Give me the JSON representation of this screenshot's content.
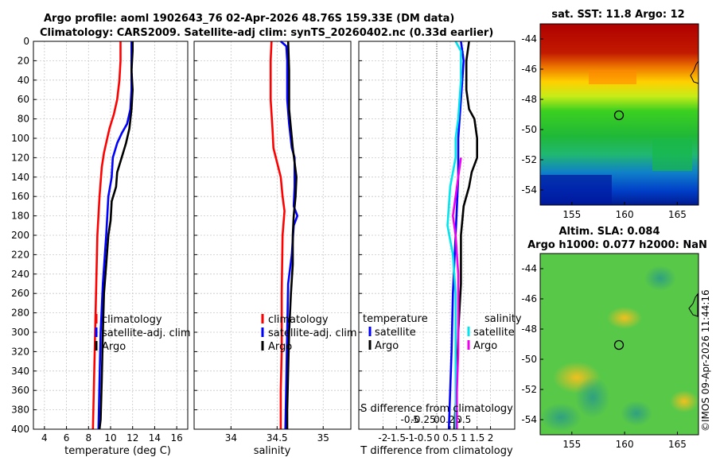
{
  "title": {
    "line1": "Argo profile: aoml 1902643_76 02-Apr-2026 48.76S 159.33E (DM data)",
    "line2": "Climatology: CARS2009. Satellite-adj clim: synTS_20260402.nc (0.33d earlier)"
  },
  "colors": {
    "climatology": "#ff0000",
    "satellite": "#0000ff",
    "argo": "#000000",
    "sat_salinity": "#00e5ee",
    "argo_salinity": "#ee00ee"
  },
  "chart_data": [
    {
      "id": "temperature",
      "type": "line",
      "xlabel": "temperature (deg C)",
      "ylabel": "",
      "xlim": [
        3,
        17
      ],
      "ylim": [
        400,
        0
      ],
      "xticks": [
        "4",
        "6",
        "8",
        "10",
        "12",
        "14",
        "16"
      ],
      "yticks": [
        "0",
        "20",
        "40",
        "60",
        "80",
        "100",
        "120",
        "140",
        "160",
        "180",
        "200",
        "220",
        "240",
        "260",
        "280",
        "300",
        "320",
        "340",
        "360",
        "380",
        "400"
      ],
      "grid": true,
      "legend": {
        "placement": "bottom-right",
        "entries": [
          "climatology",
          "satellite-adj. clim",
          "Argo"
        ]
      },
      "series": [
        {
          "name": "climatology",
          "color": "#ff0000",
          "points": [
            [
              10.9,
              0
            ],
            [
              10.9,
              20
            ],
            [
              10.8,
              40
            ],
            [
              10.6,
              60
            ],
            [
              10.3,
              75
            ],
            [
              9.9,
              90
            ],
            [
              9.7,
              100
            ],
            [
              9.4,
              115
            ],
            [
              9.2,
              130
            ],
            [
              9.0,
              160
            ],
            [
              8.8,
              200
            ],
            [
              8.7,
              250
            ],
            [
              8.6,
              300
            ],
            [
              8.5,
              350
            ],
            [
              8.4,
              400
            ]
          ]
        },
        {
          "name": "satellite-adj. clim",
          "color": "#0000ff",
          "points": [
            [
              11.9,
              0
            ],
            [
              11.9,
              20
            ],
            [
              11.9,
              50
            ],
            [
              11.8,
              70
            ],
            [
              11.5,
              85
            ],
            [
              11.0,
              95
            ],
            [
              10.6,
              105
            ],
            [
              10.2,
              120
            ],
            [
              10.1,
              140
            ],
            [
              9.8,
              160
            ],
            [
              9.6,
              200
            ],
            [
              9.3,
              250
            ],
            [
              9.1,
              300
            ],
            [
              9.0,
              350
            ],
            [
              8.9,
              400
            ]
          ]
        },
        {
          "name": "Argo",
          "color": "#000000",
          "points": [
            [
              12.0,
              0
            ],
            [
              12.0,
              10
            ],
            [
              11.9,
              30
            ],
            [
              12.0,
              50
            ],
            [
              11.9,
              70
            ],
            [
              11.7,
              90
            ],
            [
              11.4,
              105
            ],
            [
              11.0,
              120
            ],
            [
              10.6,
              135
            ],
            [
              10.5,
              150
            ],
            [
              10.1,
              165
            ],
            [
              10.0,
              185
            ],
            [
              9.8,
              200
            ],
            [
              9.6,
              230
            ],
            [
              9.4,
              260
            ],
            [
              9.3,
              300
            ],
            [
              9.2,
              350
            ],
            [
              9.1,
              390
            ],
            [
              9.0,
              400
            ]
          ]
        }
      ]
    },
    {
      "id": "salinity",
      "type": "line",
      "xlabel": "salinity",
      "xlim": [
        33.6,
        35.3
      ],
      "ylim": [
        400,
        0
      ],
      "xticks": [
        "34",
        "34.5",
        "35"
      ],
      "grid": true,
      "legend": {
        "placement": "bottom-right",
        "entries": [
          "climatology",
          "satellite-adj. clim",
          "Argo"
        ]
      },
      "series": [
        {
          "name": "climatology",
          "color": "#ff0000",
          "points": [
            [
              34.44,
              0
            ],
            [
              34.43,
              20
            ],
            [
              34.43,
              60
            ],
            [
              34.45,
              90
            ],
            [
              34.46,
              110
            ],
            [
              34.5,
              125
            ],
            [
              34.54,
              140
            ],
            [
              34.56,
              160
            ],
            [
              34.58,
              175
            ],
            [
              34.56,
              200
            ],
            [
              34.55,
              260
            ],
            [
              34.55,
              320
            ],
            [
              34.54,
              360
            ],
            [
              34.54,
              400
            ]
          ]
        },
        {
          "name": "satellite-adj. clim",
          "color": "#0000ff",
          "points": [
            [
              34.54,
              0
            ],
            [
              34.6,
              5
            ],
            [
              34.61,
              20
            ],
            [
              34.61,
              60
            ],
            [
              34.63,
              85
            ],
            [
              34.66,
              110
            ],
            [
              34.69,
              120
            ],
            [
              34.69,
              150
            ],
            [
              34.68,
              170
            ],
            [
              34.72,
              180
            ],
            [
              34.68,
              190
            ],
            [
              34.66,
              220
            ],
            [
              34.62,
              250
            ],
            [
              34.61,
              300
            ],
            [
              34.6,
              350
            ],
            [
              34.59,
              400
            ]
          ]
        },
        {
          "name": "Argo",
          "color": "#000000",
          "points": [
            [
              34.62,
              0
            ],
            [
              34.63,
              30
            ],
            [
              34.63,
              70
            ],
            [
              34.65,
              90
            ],
            [
              34.67,
              110
            ],
            [
              34.69,
              125
            ],
            [
              34.71,
              140
            ],
            [
              34.7,
              160
            ],
            [
              34.68,
              180
            ],
            [
              34.67,
              200
            ],
            [
              34.67,
              230
            ],
            [
              34.65,
              260
            ],
            [
              34.63,
              300
            ],
            [
              34.62,
              340
            ],
            [
              34.61,
              380
            ],
            [
              34.61,
              400
            ]
          ]
        }
      ]
    },
    {
      "id": "differences",
      "type": "line",
      "xlabel": "T difference from climatology",
      "xlabel2": "S difference from climatology",
      "xlim": [
        -2.9,
        2.9
      ],
      "ylim": [
        400,
        0
      ],
      "xticks": [
        "-2",
        "-1.5",
        "-1",
        "-0.5",
        "0",
        "0.5",
        "1",
        "1.5",
        "2"
      ],
      "xticks2": [
        "-0.5",
        "-0.25",
        "0",
        "0.25",
        "0.5"
      ],
      "grid": true,
      "zero_line": true,
      "legend": {
        "placement": "bottom",
        "temperature_title": "temperature",
        "salinity_title": "salinity",
        "entries_t": [
          "satellite",
          "Argo"
        ],
        "entries_s": [
          "satellite",
          "Argo"
        ]
      },
      "series": [
        {
          "name": "T satellite",
          "color": "#0000ff",
          "points": [
            [
              0.9,
              0
            ],
            [
              1.0,
              20
            ],
            [
              0.9,
              60
            ],
            [
              0.8,
              100
            ],
            [
              0.8,
              140
            ],
            [
              0.7,
              200
            ],
            [
              0.6,
              260
            ],
            [
              0.55,
              320
            ],
            [
              0.5,
              360
            ],
            [
              0.45,
              400
            ]
          ]
        },
        {
          "name": "T Argo",
          "color": "#000000",
          "points": [
            [
              1.2,
              0
            ],
            [
              1.1,
              20
            ],
            [
              1.1,
              50
            ],
            [
              1.2,
              70
            ],
            [
              1.4,
              80
            ],
            [
              1.5,
              100
            ],
            [
              1.5,
              120
            ],
            [
              1.3,
              135
            ],
            [
              1.2,
              150
            ],
            [
              1.0,
              170
            ],
            [
              0.9,
              200
            ],
            [
              0.9,
              250
            ],
            [
              0.8,
              300
            ],
            [
              0.75,
              350
            ],
            [
              0.65,
              400
            ]
          ]
        },
        {
          "name": "S satellite",
          "color": "#00e5ee",
          "points": [
            [
              0.7,
              0
            ],
            [
              0.9,
              10
            ],
            [
              0.9,
              40
            ],
            [
              0.8,
              80
            ],
            [
              0.7,
              100
            ],
            [
              0.7,
              120
            ],
            [
              0.5,
              150
            ],
            [
              0.4,
              190
            ],
            [
              0.6,
              220
            ],
            [
              0.7,
              260
            ],
            [
              0.7,
              320
            ],
            [
              0.7,
              400
            ]
          ]
        },
        {
          "name": "S Argo",
          "color": "#ee00ee",
          "points": [
            [
              0.9,
              120
            ],
            [
              0.8,
              140
            ],
            [
              0.7,
              160
            ],
            [
              0.6,
              180
            ],
            [
              0.7,
              200
            ],
            [
              0.8,
              240
            ],
            [
              0.8,
              280
            ],
            [
              0.8,
              320
            ],
            [
              0.75,
              360
            ],
            [
              0.75,
              400
            ]
          ]
        }
      ]
    }
  ],
  "maps": [
    {
      "id": "sst-map",
      "title": "sat. SST: 11.8 Argo: 12",
      "xticks": [
        "155",
        "160",
        "165"
      ],
      "yticks": [
        "-44",
        "-46",
        "-48",
        "-50",
        "-52",
        "-54"
      ],
      "marker": {
        "lon": 159.33,
        "lat": -48.76
      }
    },
    {
      "id": "sla-map",
      "title1": "Altim. SLA: 0.084",
      "title2": "Argo h1000: 0.077 h2000: NaN",
      "xticks": [
        "155",
        "160",
        "165"
      ],
      "yticks": [
        "-44",
        "-46",
        "-48",
        "-50",
        "-52",
        "-54"
      ],
      "marker": {
        "lon": 159.33,
        "lat": -48.76
      }
    }
  ],
  "watermark": "©IMOS 09-Apr-2026 11:44:16"
}
